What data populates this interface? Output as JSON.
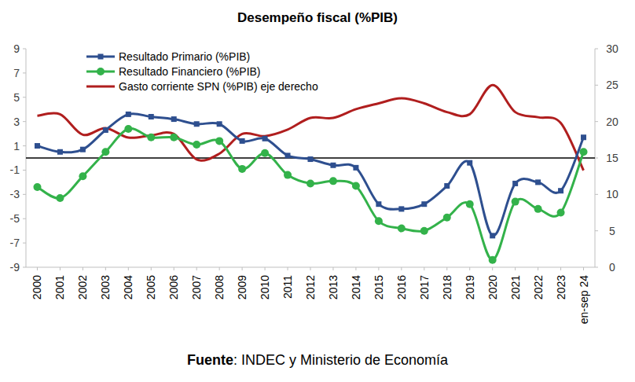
{
  "chart_data": {
    "type": "line",
    "title": "Desempeño fiscal (%PIB)",
    "source": "Fuente: INDEC y Ministerio de Economía",
    "categories": [
      "2000",
      "2001",
      "2002",
      "2003",
      "2004",
      "2005",
      "2006",
      "2007",
      "2008",
      "2009",
      "2010",
      "2011",
      "2012",
      "2013",
      "2014",
      "2015",
      "2016",
      "2017",
      "2018",
      "2019",
      "2020",
      "2021",
      "2022",
      "2023",
      "en-sep 24"
    ],
    "ylim": [
      -9,
      9
    ],
    "yticks": [
      -9,
      -7,
      -5,
      -3,
      -1,
      1,
      3,
      5,
      7,
      9
    ],
    "y2lim": [
      0,
      30
    ],
    "y2ticks": [
      0,
      5,
      10,
      15,
      20,
      25,
      30
    ],
    "hlines": [
      0
    ],
    "grid": false,
    "legend": "top-left",
    "line_style": "smooth",
    "series": [
      {
        "name": "Resultado Primario (%PIB)",
        "color": "#2E4F8F",
        "marker": "square",
        "values": [
          1.0,
          0.5,
          0.7,
          2.3,
          3.6,
          3.4,
          3.2,
          2.8,
          2.8,
          1.4,
          1.6,
          0.2,
          -0.1,
          -0.6,
          -0.8,
          -3.8,
          -4.2,
          -3.8,
          -2.3,
          -0.4,
          -6.4,
          -2.1,
          -2.0,
          -2.7,
          1.7
        ]
      },
      {
        "name": "Resultado Financiero (%PIB)",
        "color": "#33B24A",
        "marker": "circle",
        "values": [
          -2.4,
          -3.3,
          -1.5,
          0.5,
          2.4,
          1.7,
          1.7,
          1.1,
          1.4,
          -0.9,
          0.4,
          -1.4,
          -2.1,
          -1.9,
          -2.3,
          -5.2,
          -5.8,
          -6.0,
          -4.9,
          -3.8,
          -8.4,
          -3.6,
          -4.2,
          -4.5,
          0.5
        ]
      },
      {
        "name": "Gasto corriente SPN (%PIB) eje derecho",
        "color": "#B01E1E",
        "marker": "none",
        "axis": "y2",
        "values": [
          20.8,
          21.0,
          18.2,
          19.1,
          17.8,
          18.1,
          18.3,
          14.8,
          15.6,
          18.3,
          18.0,
          18.9,
          20.5,
          20.5,
          21.7,
          22.5,
          23.2,
          22.5,
          21.3,
          21.0,
          25.0,
          21.3,
          20.6,
          19.8,
          13.3
        ]
      }
    ]
  }
}
